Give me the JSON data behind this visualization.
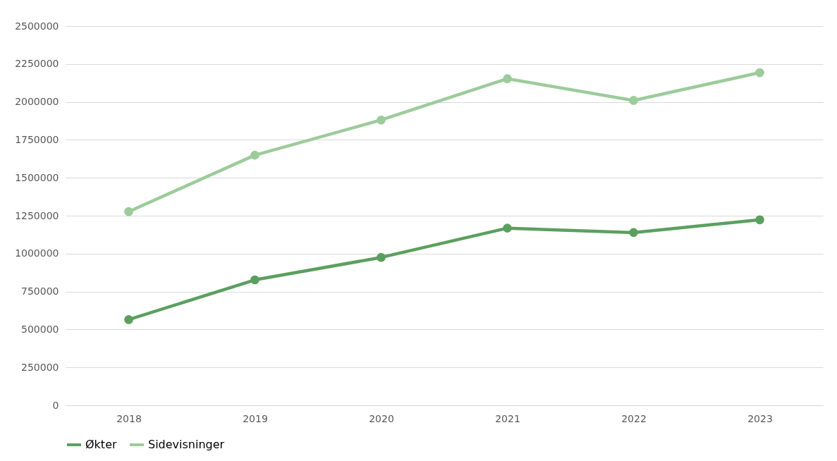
{
  "chart_data": {
    "type": "line",
    "categories": [
      "2018",
      "2019",
      "2020",
      "2021",
      "2022",
      "2023"
    ],
    "series": [
      {
        "name": "Økter",
        "color": "#5b9f5f",
        "values": [
          565000,
          827000,
          975000,
          1168000,
          1139000,
          1223000
        ]
      },
      {
        "name": "Sidevisninger",
        "color": "#9dcb9b",
        "values": [
          1277000,
          1649000,
          1881000,
          2153000,
          2010000,
          2193000
        ]
      }
    ],
    "ylim": [
      0,
      2500000
    ],
    "yticks": [
      0,
      250000,
      500000,
      750000,
      1000000,
      1250000,
      1500000,
      1750000,
      2000000,
      2250000,
      2500000
    ],
    "grid": "y",
    "legend": "bottom",
    "marker": "circle",
    "line_style": "solid"
  }
}
